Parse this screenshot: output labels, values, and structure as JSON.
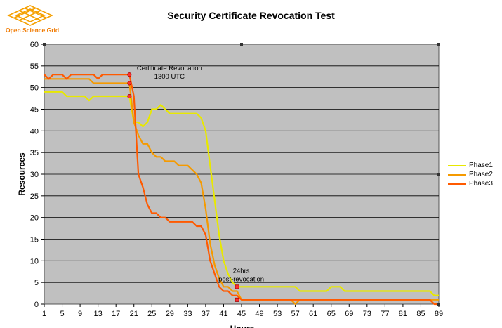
{
  "logo": {
    "text": "Open Science Grid"
  },
  "chart_data": {
    "type": "line",
    "title": "Security Certificate Revocation Test",
    "xlabel": "Hours",
    "ylabel": "Resources",
    "xlim": [
      1,
      89
    ],
    "ylim": [
      0,
      60
    ],
    "x_ticks": [
      1,
      5,
      9,
      13,
      17,
      21,
      25,
      29,
      33,
      37,
      41,
      45,
      49,
      53,
      57,
      61,
      65,
      69,
      73,
      77,
      81,
      85,
      89
    ],
    "y_ticks": [
      0,
      5,
      10,
      15,
      20,
      25,
      30,
      35,
      40,
      45,
      50,
      55,
      60
    ],
    "grid": true,
    "legend_position": "right",
    "plot_bg": "#c0c0c0",
    "series": [
      {
        "name": "Phase1",
        "color": "#e8e800",
        "x": [
          1,
          2,
          3,
          4,
          5,
          6,
          7,
          8,
          9,
          10,
          11,
          12,
          13,
          14,
          15,
          16,
          17,
          18,
          19,
          20,
          21,
          22,
          23,
          24,
          25,
          26,
          27,
          28,
          29,
          30,
          31,
          32,
          33,
          34,
          35,
          36,
          37,
          38,
          39,
          40,
          41,
          42,
          43,
          44,
          45,
          46,
          47,
          48,
          49,
          50,
          51,
          52,
          53,
          54,
          55,
          56,
          57,
          58,
          59,
          60,
          61,
          62,
          63,
          64,
          65,
          66,
          67,
          68,
          69,
          70,
          71,
          72,
          73,
          74,
          75,
          76,
          77,
          78,
          79,
          80,
          81,
          82,
          83,
          84,
          85,
          86,
          87,
          88,
          89
        ],
        "values": [
          49,
          49,
          49,
          49,
          49,
          48,
          48,
          48,
          48,
          48,
          47,
          48,
          48,
          48,
          48,
          48,
          48,
          48,
          48,
          48,
          42,
          42,
          41,
          42,
          45,
          45,
          46,
          45,
          44,
          44,
          44,
          44,
          44,
          44,
          44,
          43,
          40,
          32,
          24,
          16,
          10,
          7,
          5,
          4,
          4,
          4,
          4,
          4,
          4,
          4,
          4,
          4,
          4,
          4,
          4,
          4,
          4,
          3,
          3,
          3,
          3,
          3,
          3,
          3,
          4,
          4,
          4,
          3,
          3,
          3,
          3,
          3,
          3,
          3,
          3,
          3,
          3,
          3,
          3,
          3,
          3,
          3,
          3,
          3,
          3,
          3,
          3,
          2,
          2
        ]
      },
      {
        "name": "Phase2",
        "color": "#f59a00",
        "x": [
          1,
          2,
          3,
          4,
          5,
          6,
          7,
          8,
          9,
          10,
          11,
          12,
          13,
          14,
          15,
          16,
          17,
          18,
          19,
          20,
          21,
          22,
          23,
          24,
          25,
          26,
          27,
          28,
          29,
          30,
          31,
          32,
          33,
          34,
          35,
          36,
          37,
          38,
          39,
          40,
          41,
          42,
          43,
          44,
          45,
          46,
          47,
          48,
          49,
          50,
          51,
          52,
          53,
          54,
          55,
          56,
          57,
          58,
          59,
          60,
          61,
          62,
          63,
          64,
          65,
          66,
          67,
          68,
          69,
          70,
          71,
          72,
          73,
          74,
          75,
          76,
          77,
          78,
          79,
          80,
          81,
          82,
          83,
          84,
          85,
          86,
          87,
          88,
          89
        ],
        "values": [
          52,
          52,
          52,
          52,
          52,
          52,
          52,
          52,
          52,
          52,
          52,
          51,
          51,
          51,
          51,
          51,
          51,
          51,
          51,
          51,
          42,
          39,
          37,
          37,
          35,
          34,
          34,
          33,
          33,
          33,
          32,
          32,
          32,
          31,
          30,
          28,
          22,
          14,
          9,
          6,
          4,
          4,
          3,
          3,
          1,
          1,
          1,
          1,
          1,
          1,
          1,
          1,
          1,
          1,
          1,
          1,
          0,
          1,
          1,
          1,
          1,
          1,
          1,
          1,
          1,
          1,
          1,
          1,
          1,
          1,
          1,
          1,
          1,
          1,
          1,
          1,
          1,
          1,
          1,
          1,
          1,
          1,
          1,
          1,
          1,
          1,
          1,
          1,
          1
        ]
      },
      {
        "name": "Phase3",
        "color": "#ff5a00",
        "x": [
          1,
          2,
          3,
          4,
          5,
          6,
          7,
          8,
          9,
          10,
          11,
          12,
          13,
          14,
          15,
          16,
          17,
          18,
          19,
          20,
          21,
          22,
          23,
          24,
          25,
          26,
          27,
          28,
          29,
          30,
          31,
          32,
          33,
          34,
          35,
          36,
          37,
          38,
          39,
          40,
          41,
          42,
          43,
          44,
          45,
          46,
          47,
          48,
          49,
          50,
          51,
          52,
          53,
          54,
          55,
          56,
          57,
          58,
          59,
          60,
          61,
          62,
          63,
          64,
          65,
          66,
          67,
          68,
          69,
          70,
          71,
          72,
          73,
          74,
          75,
          76,
          77,
          78,
          79,
          80,
          81,
          82,
          83,
          84,
          85,
          86,
          87,
          88,
          89
        ],
        "values": [
          53,
          52,
          53,
          53,
          53,
          52,
          53,
          53,
          53,
          53,
          53,
          53,
          52,
          53,
          53,
          53,
          53,
          53,
          53,
          53,
          48,
          30,
          27,
          23,
          21,
          21,
          20,
          20,
          19,
          19,
          19,
          19,
          19,
          19,
          18,
          18,
          16,
          10,
          7,
          4,
          3,
          3,
          2,
          2,
          1,
          1,
          1,
          1,
          1,
          1,
          1,
          1,
          1,
          1,
          1,
          1,
          1,
          1,
          1,
          1,
          1,
          1,
          1,
          1,
          1,
          1,
          1,
          1,
          1,
          1,
          1,
          1,
          1,
          1,
          1,
          1,
          1,
          1,
          1,
          1,
          1,
          1,
          1,
          1,
          1,
          1,
          1,
          0,
          0
        ]
      }
    ],
    "annotations": [
      {
        "text_lines": [
          "Certificate Revocation",
          "1300 UTC"
        ],
        "x": 20,
        "y": 53
      },
      {
        "text_lines": [
          "24hrs",
          "post-revocation"
        ],
        "x": 44,
        "y": 4
      }
    ],
    "markers": [
      {
        "x": 20,
        "y": 53,
        "shape": "circle"
      },
      {
        "x": 20,
        "y": 51,
        "shape": "circle"
      },
      {
        "x": 20,
        "y": 48,
        "shape": "circle"
      },
      {
        "x": 44,
        "y": 4,
        "shape": "square"
      },
      {
        "x": 44,
        "y": 1,
        "shape": "square"
      }
    ]
  }
}
